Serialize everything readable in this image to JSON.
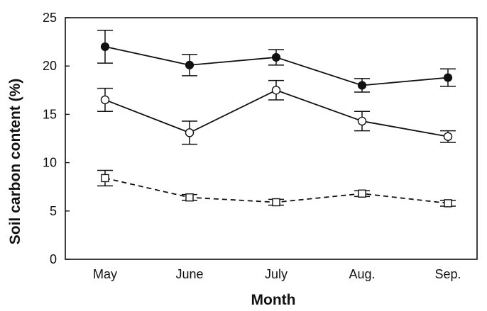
{
  "chart_data": {
    "type": "line",
    "title": "",
    "xlabel": "Month",
    "ylabel": "Soil carbon content (%)",
    "categories": [
      "May",
      "June",
      "July",
      "Aug.",
      "Sep."
    ],
    "ylim": [
      0,
      25
    ],
    "yticks": [
      0,
      5,
      10,
      15,
      20,
      25
    ],
    "grid": false,
    "legend": "none",
    "series": [
      {
        "marker": "filled-circle",
        "line": "solid",
        "values": [
          22.0,
          20.1,
          20.9,
          18.0,
          18.8
        ],
        "errors": [
          1.7,
          1.1,
          0.8,
          0.7,
          0.9
        ]
      },
      {
        "marker": "open-circle",
        "line": "solid",
        "values": [
          16.5,
          13.1,
          17.5,
          14.3,
          12.7
        ],
        "errors": [
          1.2,
          1.2,
          1.0,
          1.0,
          0.6
        ]
      },
      {
        "marker": "open-square",
        "line": "dashed",
        "values": [
          8.4,
          6.4,
          5.9,
          6.8,
          5.8
        ],
        "errors": [
          0.8,
          0.3,
          0.3,
          0.3,
          0.3
        ]
      }
    ]
  }
}
